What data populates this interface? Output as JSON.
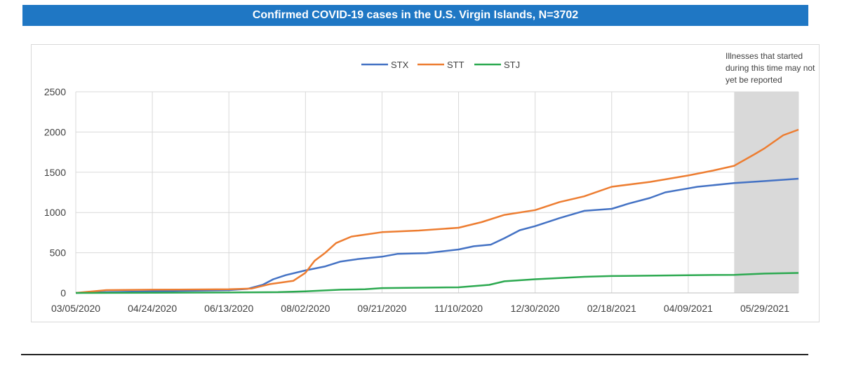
{
  "header": {
    "title": "Confirmed COVID-19 cases in the U.S. Virgin Islands, N=3702"
  },
  "chart_data": {
    "type": "line",
    "title": "Confirmed COVID-19 cases in the U.S. Virgin Islands, N=3702",
    "xlabel": "",
    "ylabel": "",
    "x_range": [
      "03/05/2020",
      "06/20/2021"
    ],
    "ylim": [
      0,
      2500
    ],
    "yticks": [
      0,
      500,
      1000,
      1500,
      2000,
      2500
    ],
    "xticks": [
      "03/05/2020",
      "04/24/2020",
      "06/13/2020",
      "08/02/2020",
      "09/21/2020",
      "11/10/2020",
      "12/30/2020",
      "02/18/2021",
      "04/09/2021",
      "05/29/2021"
    ],
    "grid": "vertical and horizontal",
    "legend_position": "top-center",
    "shaded_region": {
      "start": "05/09/2021",
      "end": "06/20/2021",
      "note": "Illnesses that started during this time may not yet be reported"
    },
    "series": [
      {
        "name": "STX",
        "color": "#4472c4",
        "points": [
          [
            "03/05/2020",
            0
          ],
          [
            "03/25/2020",
            10
          ],
          [
            "04/24/2020",
            20
          ],
          [
            "06/13/2020",
            35
          ],
          [
            "06/25/2020",
            50
          ],
          [
            "07/05/2020",
            100
          ],
          [
            "07/12/2020",
            170
          ],
          [
            "07/20/2020",
            220
          ],
          [
            "08/02/2020",
            280
          ],
          [
            "08/15/2020",
            330
          ],
          [
            "08/25/2020",
            390
          ],
          [
            "09/05/2020",
            420
          ],
          [
            "09/21/2020",
            450
          ],
          [
            "10/01/2020",
            485
          ],
          [
            "10/20/2020",
            495
          ],
          [
            "11/10/2020",
            540
          ],
          [
            "11/20/2020",
            580
          ],
          [
            "12/01/2020",
            600
          ],
          [
            "12/10/2020",
            680
          ],
          [
            "12/20/2020",
            780
          ],
          [
            "12/30/2020",
            830
          ],
          [
            "01/15/2021",
            930
          ],
          [
            "01/31/2021",
            1020
          ],
          [
            "02/18/2021",
            1045
          ],
          [
            "03/01/2021",
            1110
          ],
          [
            "03/15/2021",
            1180
          ],
          [
            "03/25/2021",
            1250
          ],
          [
            "04/09/2021",
            1300
          ],
          [
            "04/15/2021",
            1320
          ],
          [
            "05/09/2021",
            1365
          ],
          [
            "05/29/2021",
            1390
          ],
          [
            "06/20/2021",
            1420
          ]
        ]
      },
      {
        "name": "STT",
        "color": "#ed7d31",
        "points": [
          [
            "03/05/2020",
            0
          ],
          [
            "03/25/2020",
            35
          ],
          [
            "04/24/2020",
            40
          ],
          [
            "06/13/2020",
            45
          ],
          [
            "06/28/2020",
            55
          ],
          [
            "07/10/2020",
            110
          ],
          [
            "07/25/2020",
            150
          ],
          [
            "08/02/2020",
            250
          ],
          [
            "08/08/2020",
            400
          ],
          [
            "08/15/2020",
            500
          ],
          [
            "08/22/2020",
            620
          ],
          [
            "09/01/2020",
            700
          ],
          [
            "09/21/2020",
            755
          ],
          [
            "10/15/2020",
            775
          ],
          [
            "11/10/2020",
            810
          ],
          [
            "11/25/2020",
            880
          ],
          [
            "12/10/2020",
            970
          ],
          [
            "12/30/2020",
            1030
          ],
          [
            "01/15/2021",
            1130
          ],
          [
            "01/31/2021",
            1200
          ],
          [
            "02/18/2021",
            1320
          ],
          [
            "03/15/2021",
            1380
          ],
          [
            "04/09/2021",
            1460
          ],
          [
            "04/25/2021",
            1520
          ],
          [
            "05/09/2021",
            1580
          ],
          [
            "05/22/2021",
            1720
          ],
          [
            "05/29/2021",
            1800
          ],
          [
            "06/10/2021",
            1960
          ],
          [
            "06/20/2021",
            2030
          ]
        ]
      },
      {
        "name": "STJ",
        "color": "#2ca950",
        "points": [
          [
            "03/05/2020",
            0
          ],
          [
            "04/24/2020",
            3
          ],
          [
            "06/13/2020",
            5
          ],
          [
            "07/15/2020",
            10
          ],
          [
            "08/02/2020",
            20
          ],
          [
            "08/25/2020",
            40
          ],
          [
            "09/10/2020",
            45
          ],
          [
            "09/21/2020",
            60
          ],
          [
            "11/10/2020",
            70
          ],
          [
            "11/30/2020",
            100
          ],
          [
            "12/10/2020",
            145
          ],
          [
            "12/30/2020",
            170
          ],
          [
            "01/31/2021",
            200
          ],
          [
            "02/18/2021",
            210
          ],
          [
            "04/09/2021",
            220
          ],
          [
            "05/09/2021",
            225
          ],
          [
            "05/29/2021",
            240
          ],
          [
            "06/20/2021",
            248
          ]
        ]
      }
    ]
  }
}
